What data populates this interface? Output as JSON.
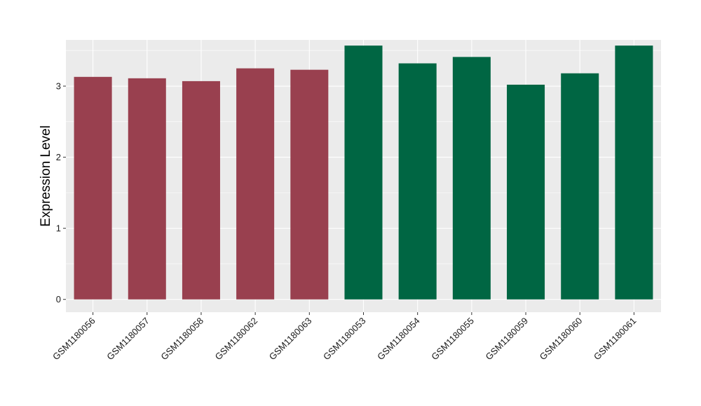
{
  "chart_data": {
    "type": "bar",
    "ylabel": "Expression Level",
    "xlabel": "",
    "ylim": [
      -0.18,
      3.65
    ],
    "yticks": [
      0,
      1,
      2,
      3
    ],
    "ytick_labels": [
      "0",
      "1",
      "2",
      "3"
    ],
    "grid": true,
    "legend": "none",
    "panel_color": "#ebebeb",
    "grid_color": "#ffffff",
    "categories": [
      "GSM1180056",
      "GSM1180057",
      "GSM1180058",
      "GSM1180062",
      "GSM1180063",
      "GSM1180053",
      "GSM1180054",
      "GSM1180055",
      "GSM1180059",
      "GSM1180060",
      "GSM1180061"
    ],
    "values": [
      3.13,
      3.11,
      3.07,
      3.25,
      3.23,
      3.57,
      3.32,
      3.41,
      3.02,
      3.18,
      3.57
    ],
    "colors": [
      "#99404f",
      "#99404f",
      "#99404f",
      "#99404f",
      "#99404f",
      "#006643",
      "#006643",
      "#006643",
      "#006643",
      "#006643",
      "#006643"
    ]
  }
}
